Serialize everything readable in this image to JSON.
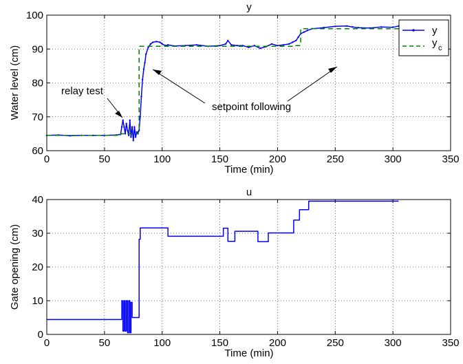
{
  "chart_data": [
    {
      "type": "line",
      "title": "y",
      "xlabel": "Time (min)",
      "ylabel": "Water level (cm)",
      "xlim": [
        0,
        350
      ],
      "ylim": [
        60,
        100
      ],
      "xticks": [
        0,
        50,
        100,
        150,
        200,
        250,
        300,
        350
      ],
      "yticks": [
        60,
        70,
        80,
        90,
        100
      ],
      "grid": true,
      "legend": {
        "placement": "top-right",
        "entries": [
          {
            "label": "y",
            "sub": ""
          },
          {
            "label": "y",
            "sub": "c"
          }
        ]
      },
      "annotations": [
        {
          "text": "relay test",
          "points_to": [
            [
              66,
              69
            ]
          ]
        },
        {
          "text": "setpoint following",
          "points_to": [
            [
              84,
              84
            ],
            [
              214,
              91
            ]
          ]
        }
      ],
      "series": [
        {
          "name": "y",
          "color": "#0000ff",
          "style": "solid-dotted",
          "x": [
            0,
            10,
            20,
            30,
            40,
            50,
            60,
            64,
            65,
            66,
            67,
            68,
            69,
            70,
            71,
            72,
            73,
            74,
            75,
            76,
            77,
            78,
            79,
            80,
            81,
            82,
            83,
            84,
            85,
            86,
            88,
            90,
            92,
            95,
            98,
            100,
            103,
            105,
            110,
            120,
            130,
            140,
            150,
            155,
            157,
            160,
            165,
            170,
            175,
            180,
            185,
            190,
            195,
            200,
            205,
            210,
            213,
            216,
            218,
            220,
            223,
            226,
            230,
            240,
            250,
            260,
            265,
            270,
            280,
            290,
            300,
            305
          ],
          "y": [
            64.5,
            64.6,
            64.4,
            64.5,
            64.5,
            64.5,
            64.6,
            64.8,
            67,
            69,
            67,
            65,
            68,
            66,
            64.5,
            69,
            64,
            67,
            63,
            67,
            64,
            65.5,
            65,
            66,
            70,
            76,
            81,
            84,
            86,
            88.5,
            90.5,
            91.5,
            92,
            92.2,
            92,
            91.5,
            91,
            91.2,
            90.9,
            91,
            91.2,
            90.8,
            91,
            91.5,
            92.5,
            91.2,
            91,
            91,
            90.5,
            91,
            90.2,
            90.7,
            91.5,
            91,
            91.2,
            91.5,
            92,
            92.5,
            93.5,
            94.5,
            95,
            95.5,
            96,
            96.3,
            96.7,
            96.8,
            96.5,
            96.3,
            96.2,
            96.5,
            96.4,
            96.8
          ]
        },
        {
          "name": "y_c",
          "color": "#008000",
          "style": "dashed",
          "x": [
            0,
            64,
            64,
            79,
            79,
            80,
            80,
            215,
            215,
            220,
            220,
            305
          ],
          "y": [
            64.5,
            64.5,
            65,
            65,
            66,
            66,
            90.8,
            90.8,
            91,
            91,
            96,
            96
          ]
        }
      ]
    },
    {
      "type": "line",
      "title": "u",
      "xlabel": "Time (min)",
      "ylabel": "Gate opening (cm)",
      "xlim": [
        0,
        350
      ],
      "ylim": [
        0,
        40
      ],
      "xticks": [
        0,
        50,
        100,
        150,
        200,
        250,
        300,
        350
      ],
      "yticks": [
        0,
        10,
        20,
        30,
        40
      ],
      "grid": true,
      "series": [
        {
          "name": "u",
          "color": "#0000ff",
          "style": "solid",
          "x": [
            0,
            65,
            65,
            66,
            66,
            67,
            67,
            68,
            68,
            69,
            69,
            70,
            70,
            71,
            71,
            72,
            72,
            73,
            73,
            74,
            74,
            75,
            75,
            80,
            80,
            81,
            81,
            83,
            83,
            105,
            105,
            153,
            153,
            157,
            157,
            163,
            163,
            170,
            170,
            183,
            183,
            192,
            192,
            214,
            214,
            217,
            217,
            219,
            219,
            222,
            222,
            227,
            227,
            305
          ],
          "y": [
            4.4,
            4.4,
            10,
            10,
            1,
            1,
            10,
            10,
            1,
            1,
            10,
            10,
            0.5,
            0.5,
            10,
            10,
            0.5,
            0.5,
            9.5,
            9.5,
            5,
            5,
            5,
            5,
            28.2,
            28.2,
            31.6,
            31.6,
            31.6,
            31.6,
            29.1,
            29.1,
            31.5,
            31.5,
            27.6,
            27.6,
            30.6,
            30.6,
            30.6,
            30.6,
            27.5,
            27.5,
            30.1,
            30.1,
            33.9,
            33.9,
            33.9,
            33.9,
            37,
            37,
            37,
            37,
            39.5,
            39.5
          ]
        }
      ]
    }
  ]
}
